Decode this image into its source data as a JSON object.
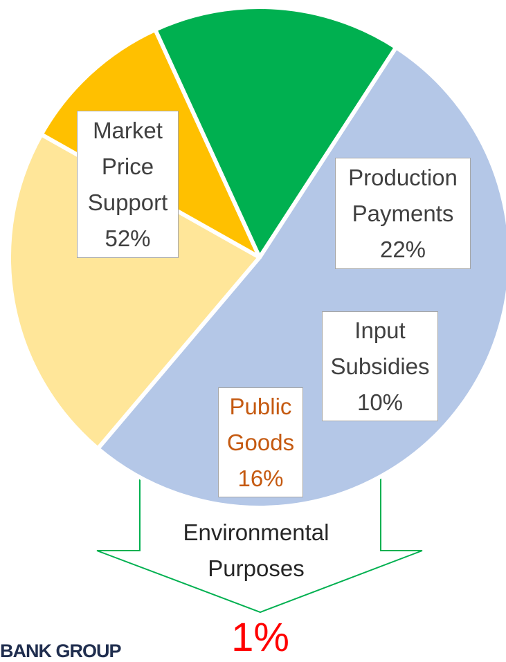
{
  "chart_data": {
    "type": "pie",
    "categories": [
      "Market Price Support",
      "Production Payments",
      "Input Subsidies",
      "Public Goods"
    ],
    "values": [
      52,
      22,
      10,
      16
    ],
    "value_labels": [
      "52%",
      "22%",
      "10%",
      "16%"
    ],
    "colors": [
      "#b4c7e7",
      "#ffe699",
      "#ffc000",
      "#00b050"
    ],
    "annotation": {
      "label": "Environmental Purposes",
      "value_label": "1%"
    }
  },
  "footer_logo": "BANK GROUP"
}
